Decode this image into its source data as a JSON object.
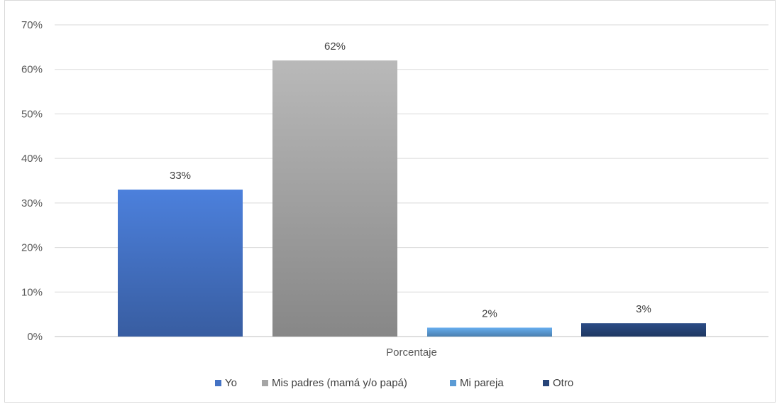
{
  "chart_data": {
    "type": "bar",
    "categories": [
      "Porcentaje"
    ],
    "series": [
      {
        "name": "Yo",
        "values": [
          33
        ],
        "label": "33%",
        "color": "#4472c4"
      },
      {
        "name": "Mis padres (mamá y/o papá)",
        "values": [
          62
        ],
        "label": "62%",
        "color": "#a5a5a5"
      },
      {
        "name": "Mi pareja",
        "values": [
          2
        ],
        "label": "2%",
        "color": "#5b9bd5"
      },
      {
        "name": "Otro",
        "values": [
          3
        ],
        "label": "3%",
        "color": "#264478"
      }
    ],
    "ylim": [
      0,
      70
    ],
    "yticks": [
      "0%",
      "10%",
      "20%",
      "30%",
      "40%",
      "50%",
      "60%",
      "70%"
    ],
    "grid": true,
    "legend_position": "bottom"
  }
}
